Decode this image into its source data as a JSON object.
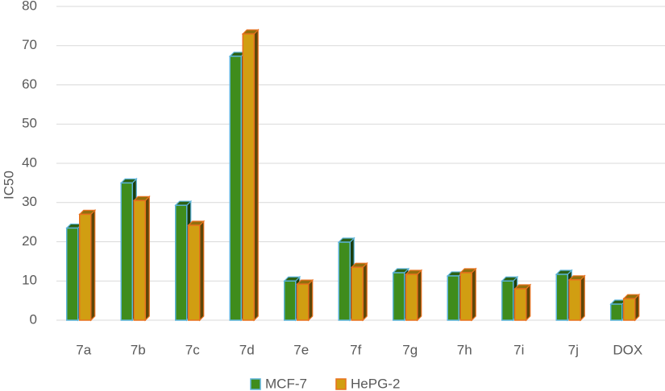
{
  "chart_data": {
    "type": "bar3d",
    "y_label": "IC50",
    "categories": [
      "7a",
      "7b",
      "7c",
      "7d",
      "7e",
      "7f",
      "7g",
      "7h",
      "7i",
      "7j",
      "DOX"
    ],
    "series": [
      {
        "name": "MCF-7",
        "color": "#3f8c1c",
        "edge": "#5bb3d9",
        "values": [
          23.5,
          35,
          29.3,
          67.3,
          10,
          19.9,
          12.1,
          11.3,
          10,
          11.7,
          4.1
        ]
      },
      {
        "name": "HePG-2",
        "color": "#d19e12",
        "edge": "#e8711e",
        "values": [
          27,
          30.5,
          24.2,
          73,
          9.2,
          13.5,
          11.7,
          12.1,
          8,
          10.3,
          5.5
        ]
      }
    ],
    "ylim": [
      0,
      80
    ],
    "yticks": [
      0,
      10,
      20,
      30,
      40,
      50,
      60,
      70,
      80
    ],
    "grid": true,
    "legend": "bottom"
  }
}
